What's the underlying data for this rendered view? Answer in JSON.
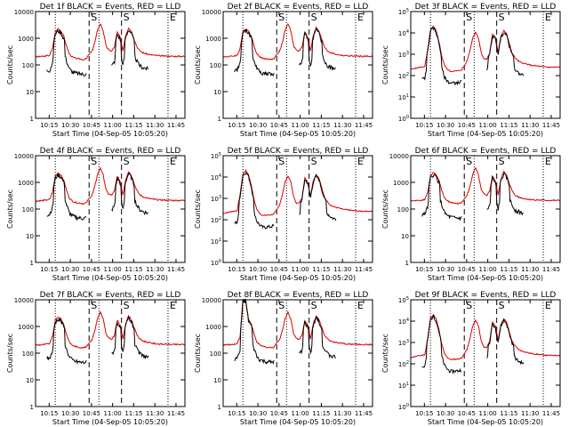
{
  "chart_data": [
    {
      "type": "line",
      "title": "Det 1f BLACK = Events, RED = LLD",
      "variant": "A",
      "ylim": [
        1,
        10000
      ],
      "ytick_labels": [
        "1",
        "10",
        "100",
        "1000",
        "10000"
      ]
    },
    {
      "type": "line",
      "title": "Det 2f BLACK = Events, RED = LLD",
      "variant": "A",
      "ylim": [
        1,
        10000
      ],
      "ytick_labels": [
        "1",
        "10",
        "100",
        "1000",
        "10000"
      ]
    },
    {
      "type": "line",
      "title": "Det 3f BLACK = Events, RED = LLD",
      "variant": "B",
      "ylim": [
        1,
        100000
      ],
      "ytick_labels": [
        "10^0",
        "10^1",
        "10^2",
        "10^3",
        "10^4",
        "10^5"
      ]
    },
    {
      "type": "line",
      "title": "Det 4f BLACK = Events, RED = LLD",
      "variant": "A",
      "ylim": [
        1,
        10000
      ],
      "ytick_labels": [
        "1",
        "10",
        "100",
        "1000",
        "10000"
      ]
    },
    {
      "type": "line",
      "title": "Det 5f BLACK = Events, RED = LLD",
      "variant": "B",
      "ylim": [
        1,
        100000
      ],
      "ytick_labels": [
        "10^0",
        "10^1",
        "10^2",
        "10^3",
        "10^4",
        "10^5"
      ]
    },
    {
      "type": "line",
      "title": "Det 6f BLACK = Events, RED = LLD",
      "variant": "A",
      "ylim": [
        1,
        10000
      ],
      "ytick_labels": [
        "1",
        "10",
        "100",
        "1000",
        "10000"
      ]
    },
    {
      "type": "line",
      "title": "Det 7f BLACK = Events, RED = LLD",
      "variant": "A",
      "ylim": [
        1,
        10000
      ],
      "ytick_labels": [
        "1",
        "10",
        "100",
        "1000",
        "10000"
      ]
    },
    {
      "type": "line",
      "title": "Det 8f BLACK = Events, RED = LLD",
      "variant": "C",
      "ylim": [
        1,
        10000
      ],
      "ytick_labels": [
        "1",
        "10",
        "100",
        "1000",
        "10000"
      ]
    },
    {
      "type": "line",
      "title": "Det 9f BLACK = Events, RED = LLD",
      "variant": "B",
      "ylim": [
        1,
        100000
      ],
      "ytick_labels": [
        "10^0",
        "10^1",
        "10^2",
        "10^3",
        "10^4",
        "10^5"
      ]
    }
  ],
  "shared": {
    "xlabel": "Start Time (04-Sep-05 10:05:20)",
    "ylabel": "Counts/sec",
    "xtick_labels": [
      "10:15",
      "10:30",
      "10:45",
      "11:00",
      "11:15",
      "11:30",
      "11:45"
    ],
    "xtick_minutes": [
      9.67,
      24.67,
      39.67,
      54.67,
      69.67,
      84.67,
      99.67
    ],
    "xlim_minutes": [
      0,
      106
    ],
    "dotted_lines_minutes": [
      14,
      45,
      94
    ],
    "dashed_lines_minutes": [
      38,
      61
    ],
    "markers": [
      {
        "minute": 38,
        "label": "S"
      },
      {
        "minute": 61,
        "label": "S"
      },
      {
        "minute": 94,
        "label": "E"
      }
    ],
    "series": [
      {
        "name": "Events",
        "color": "#000000"
      },
      {
        "name": "LLD",
        "color": "#dd0000"
      }
    ],
    "shape_points": {
      "time_minutes": [
        0,
        6,
        10,
        12,
        14,
        16,
        18,
        20,
        22,
        24,
        26,
        28,
        30,
        34,
        36,
        38,
        40,
        42,
        44,
        46,
        48,
        50,
        52,
        54,
        56,
        58,
        60,
        62,
        64,
        66,
        68,
        70,
        72,
        74,
        76,
        78,
        80,
        82,
        84,
        86,
        88,
        90,
        92,
        94,
        96,
        98,
        100,
        102,
        104,
        106
      ],
      "llds": {
        "A": [
          200,
          210,
          230,
          420,
          1700,
          2300,
          1900,
          1200,
          500,
          260,
          200,
          180,
          170,
          160,
          170,
          250,
          320,
          700,
          2000,
          3500,
          1900,
          520,
          360,
          330,
          480,
          1700,
          1100,
          350,
          1300,
          2500,
          1800,
          900,
          480,
          340,
          290,
          270,
          250,
          240,
          230,
          225,
          220,
          218,
          216,
          214,
          212,
          210,
          210,
          210,
          210,
          210
        ],
        "B": [
          200,
          240,
          270,
          1500,
          14000,
          20000,
          13000,
          4000,
          800,
          300,
          200,
          160,
          160,
          170,
          190,
          280,
          500,
          1500,
          6000,
          11000,
          6000,
          1200,
          600,
          600,
          1100,
          9000,
          6000,
          1300,
          7000,
          13000,
          9000,
          3000,
          1100,
          700,
          500,
          420,
          380,
          350,
          320,
          300,
          290,
          280,
          270,
          260,
          255,
          250,
          250,
          250,
          250,
          250
        ],
        "C": [
          200,
          210,
          230,
          420,
          10000,
          10000,
          1900,
          1200,
          500,
          260,
          200,
          180,
          170,
          160,
          170,
          250,
          320,
          700,
          2000,
          3500,
          1900,
          520,
          360,
          330,
          480,
          1700,
          1100,
          350,
          1300,
          2500,
          1800,
          900,
          480,
          340,
          290,
          270,
          250,
          240,
          230,
          225,
          220,
          218,
          216,
          214,
          212,
          210,
          210,
          210,
          210,
          210
        ]
      },
      "events_ranges": [
        {
          "from_minute": 8,
          "to_minute": 36
        },
        {
          "from_minute": 54,
          "to_minute": 80
        }
      ]
    }
  }
}
